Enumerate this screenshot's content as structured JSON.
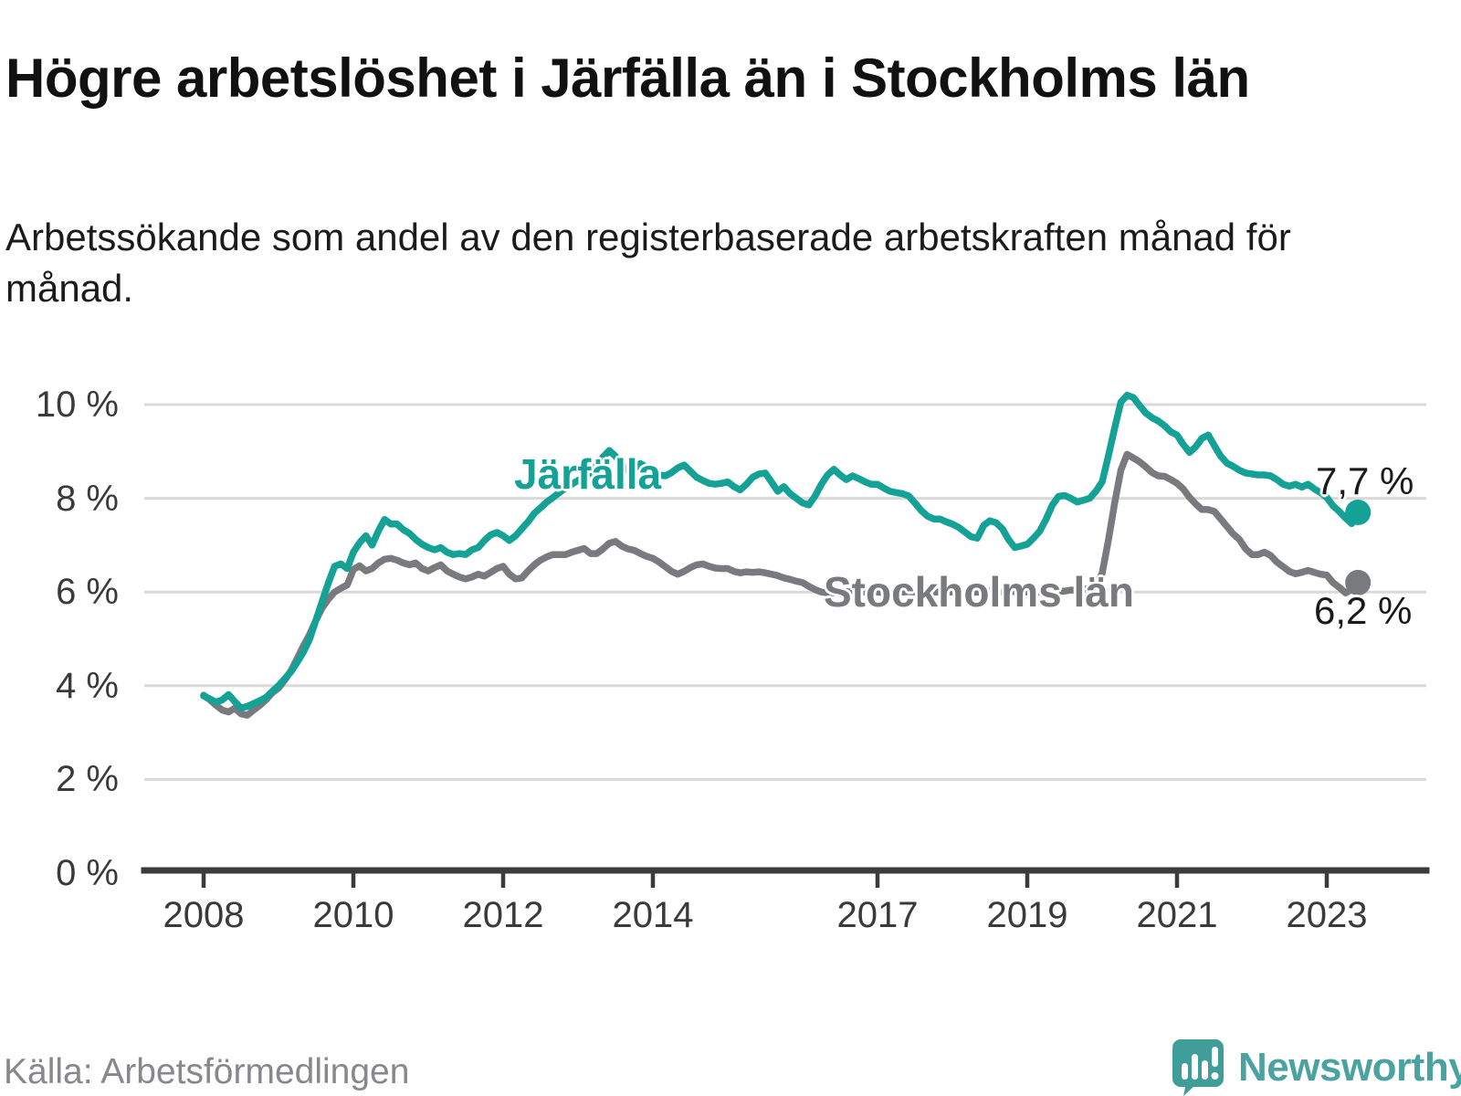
{
  "header": {
    "title": "Högre arbetslöshet i Järfälla än i Stockholms län",
    "subtitle": "Arbetssökande som andel av den registerbaserade arbetskraften månad för månad."
  },
  "footer": {
    "source": "Källa: Arbetsförmedlingen",
    "brand_name": "Newsworthy",
    "brand_color": "#3f9e9a"
  },
  "chart_data": {
    "type": "line",
    "title": "Högre arbetslöshet i Järfälla än i Stockholms län",
    "xlabel": "",
    "ylabel": "",
    "grid": true,
    "legend_position": "inline-labels",
    "x_start_year": 2008,
    "x_end": "2023-06",
    "points_per_year": 12,
    "ylim": [
      0,
      10.6
    ],
    "y_axis": {
      "ticks": [
        {
          "label": "10 %",
          "value": 10
        },
        {
          "label": "8 %",
          "value": 8
        },
        {
          "label": "6 %",
          "value": 6
        },
        {
          "label": "4 %",
          "value": 4
        },
        {
          "label": "2 %",
          "value": 2
        },
        {
          "label": "0 %",
          "value": 0
        }
      ]
    },
    "x_axis": {
      "ticks": [
        {
          "label": "2008",
          "year": 2008
        },
        {
          "label": "2010",
          "year": 2010
        },
        {
          "label": "2012",
          "year": 2012
        },
        {
          "label": "2014",
          "year": 2014
        },
        {
          "label": "2017",
          "year": 2017
        },
        {
          "label": "2019",
          "year": 2019
        },
        {
          "label": "2021",
          "year": 2021
        },
        {
          "label": "2023",
          "year": 2023
        }
      ]
    },
    "series": [
      {
        "name": "Stockholms län",
        "color": "#797a7e",
        "end_label": "6,2 %",
        "end_value": 6.2,
        "values": [
          3.8,
          3.7,
          3.58,
          3.48,
          3.44,
          3.52,
          3.4,
          3.37,
          3.48,
          3.58,
          3.7,
          3.85,
          3.95,
          4.12,
          4.32,
          4.58,
          4.85,
          5.1,
          5.4,
          5.66,
          5.85,
          6.0,
          6.08,
          6.15,
          6.48,
          6.56,
          6.45,
          6.5,
          6.62,
          6.7,
          6.72,
          6.68,
          6.62,
          6.58,
          6.62,
          6.5,
          6.45,
          6.52,
          6.58,
          6.45,
          6.38,
          6.32,
          6.28,
          6.32,
          6.38,
          6.34,
          6.42,
          6.5,
          6.55,
          6.38,
          6.28,
          6.3,
          6.45,
          6.58,
          6.68,
          6.75,
          6.8,
          6.8,
          6.8,
          6.85,
          6.89,
          6.93,
          6.82,
          6.82,
          6.92,
          7.04,
          7.08,
          6.98,
          6.92,
          6.89,
          6.82,
          6.76,
          6.72,
          6.64,
          6.54,
          6.44,
          6.38,
          6.44,
          6.52,
          6.58,
          6.6,
          6.55,
          6.51,
          6.5,
          6.5,
          6.44,
          6.41,
          6.43,
          6.42,
          6.43,
          6.41,
          6.38,
          6.35,
          6.3,
          6.27,
          6.23,
          6.2,
          6.12,
          6.05,
          6.0,
          5.98,
          5.98,
          6.0,
          6.01,
          6.0,
          5.99,
          6.0,
          6.0,
          6.0,
          5.98,
          5.97,
          5.98,
          6.0,
          6.01,
          6.0,
          5.99,
          6.0,
          6.0,
          6.0,
          6.0,
          6.0,
          5.99,
          5.98,
          5.99,
          6.0,
          6.01,
          6.02,
          6.0,
          5.99,
          6.0,
          6.01,
          6.02,
          6.0,
          5.99,
          6.0,
          6.0,
          6.01,
          6.02,
          6.02,
          6.04,
          6.04,
          6.06,
          6.08,
          6.15,
          6.4,
          7.1,
          7.9,
          8.6,
          8.94,
          8.86,
          8.78,
          8.67,
          8.55,
          8.48,
          8.47,
          8.4,
          8.32,
          8.2,
          8.02,
          7.88,
          7.76,
          7.76,
          7.72,
          7.56,
          7.4,
          7.24,
          7.12,
          6.92,
          6.8,
          6.8,
          6.85,
          6.78,
          6.64,
          6.54,
          6.44,
          6.39,
          6.42,
          6.46,
          6.42,
          6.38,
          6.36,
          6.2,
          6.1,
          5.98,
          6.05,
          6.2
        ]
      },
      {
        "name": "Järfälla",
        "color": "#14a196",
        "end_label": "7,7 %",
        "end_value": 7.7,
        "values": [
          3.78,
          3.72,
          3.65,
          3.7,
          3.81,
          3.66,
          3.52,
          3.56,
          3.62,
          3.68,
          3.75,
          3.88,
          4.0,
          4.15,
          4.3,
          4.5,
          4.72,
          5.0,
          5.4,
          5.8,
          6.2,
          6.55,
          6.6,
          6.5,
          6.85,
          7.05,
          7.2,
          7.0,
          7.3,
          7.55,
          7.45,
          7.45,
          7.33,
          7.25,
          7.12,
          7.02,
          6.95,
          6.9,
          6.95,
          6.85,
          6.8,
          6.82,
          6.8,
          6.9,
          6.95,
          7.1,
          7.22,
          7.27,
          7.2,
          7.1,
          7.2,
          7.35,
          7.5,
          7.68,
          7.8,
          7.92,
          8.02,
          8.12,
          8.22,
          8.3,
          8.38,
          8.45,
          8.55,
          8.7,
          8.88,
          9.02,
          8.9,
          8.72,
          8.58,
          8.62,
          8.74,
          8.66,
          8.57,
          8.5,
          8.48,
          8.55,
          8.65,
          8.71,
          8.58,
          8.45,
          8.38,
          8.32,
          8.3,
          8.32,
          8.35,
          8.25,
          8.18,
          8.3,
          8.45,
          8.52,
          8.54,
          8.35,
          8.15,
          8.25,
          8.1,
          8.0,
          7.9,
          7.86,
          8.05,
          8.3,
          8.5,
          8.62,
          8.5,
          8.4,
          8.48,
          8.42,
          8.35,
          8.3,
          8.3,
          8.22,
          8.15,
          8.12,
          8.1,
          8.05,
          7.9,
          7.74,
          7.62,
          7.56,
          7.56,
          7.5,
          7.45,
          7.38,
          7.28,
          7.18,
          7.15,
          7.42,
          7.52,
          7.48,
          7.35,
          7.12,
          6.95,
          6.98,
          7.02,
          7.15,
          7.3,
          7.55,
          7.85,
          8.04,
          8.06,
          8.0,
          7.92,
          7.96,
          8.0,
          8.15,
          8.35,
          8.9,
          9.5,
          10.05,
          10.2,
          10.15,
          9.98,
          9.82,
          9.72,
          9.65,
          9.55,
          9.42,
          9.35,
          9.15,
          8.98,
          9.1,
          9.28,
          9.35,
          9.12,
          8.9,
          8.75,
          8.68,
          8.6,
          8.54,
          8.52,
          8.5,
          8.5,
          8.48,
          8.4,
          8.3,
          8.26,
          8.3,
          8.24,
          8.3,
          8.2,
          8.12,
          8.02,
          7.84,
          7.72,
          7.58,
          7.46,
          7.7
        ]
      }
    ],
    "style": {
      "grid_color": "#d9d9d9",
      "axis_color": "#3b3b3b",
      "tick_label_color": "#3a3a3a"
    }
  }
}
